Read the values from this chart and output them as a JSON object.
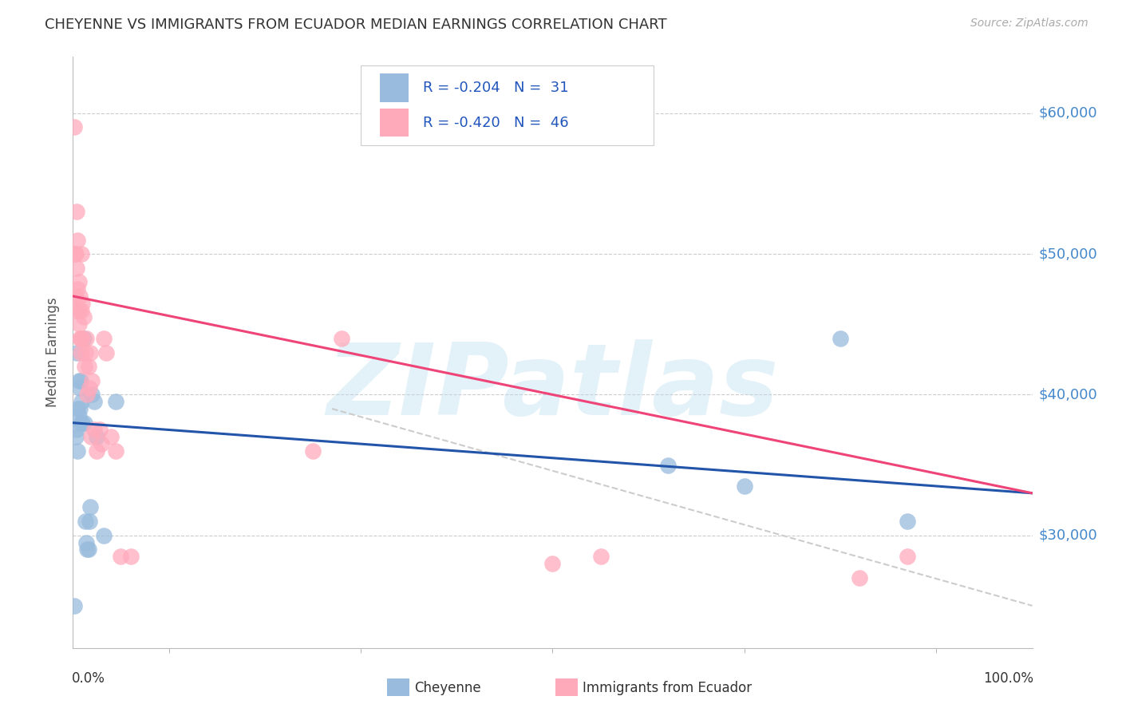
{
  "title": "CHEYENNE VS IMMIGRANTS FROM ECUADOR MEDIAN EARNINGS CORRELATION CHART",
  "source": "Source: ZipAtlas.com",
  "ylabel": "Median Earnings",
  "yticks": [
    30000,
    40000,
    50000,
    60000
  ],
  "ytick_labels": [
    "$30,000",
    "$40,000",
    "$50,000",
    "$60,000"
  ],
  "ylim": [
    22000,
    64000
  ],
  "xlim": [
    0.0,
    1.0
  ],
  "watermark": "ZIPatlas",
  "cheyenne_color": "#99BBDD",
  "ecuador_color": "#FFAABB",
  "cheyenne_line_color": "#2255AA",
  "ecuador_line_color": "#EE4477",
  "title_color": "#333333",
  "right_tick_color": "#4488CC",
  "legend_text_color": "#2255BB",
  "legend_r1": "R = -0.204   N =  31",
  "legend_r2": "R = -0.420   N =  46",
  "cheyenne_label": "Cheyenne",
  "ecuador_label": "Immigrants from Ecuador",
  "cheyenne_x": [
    0.001,
    0.003,
    0.004,
    0.004,
    0.005,
    0.005,
    0.006,
    0.006,
    0.007,
    0.007,
    0.008,
    0.008,
    0.009,
    0.01,
    0.011,
    0.012,
    0.013,
    0.014,
    0.015,
    0.016,
    0.017,
    0.018,
    0.02,
    0.022,
    0.025,
    0.032,
    0.045,
    0.62,
    0.7,
    0.8,
    0.87
  ],
  "cheyenne_y": [
    25000,
    37000,
    37500,
    43000,
    39000,
    36000,
    38500,
    41000,
    39000,
    40500,
    41000,
    38000,
    39500,
    38000,
    44000,
    38000,
    31000,
    29500,
    29000,
    29000,
    31000,
    32000,
    40000,
    39500,
    37000,
    30000,
    39500,
    35000,
    33500,
    44000,
    31000
  ],
  "ecuador_x": [
    0.001,
    0.002,
    0.002,
    0.003,
    0.003,
    0.004,
    0.004,
    0.005,
    0.005,
    0.006,
    0.006,
    0.006,
    0.007,
    0.007,
    0.008,
    0.008,
    0.009,
    0.009,
    0.01,
    0.01,
    0.011,
    0.012,
    0.013,
    0.014,
    0.015,
    0.016,
    0.017,
    0.018,
    0.019,
    0.02,
    0.022,
    0.025,
    0.028,
    0.03,
    0.032,
    0.035,
    0.04,
    0.045,
    0.05,
    0.06,
    0.25,
    0.28,
    0.5,
    0.55,
    0.82,
    0.87
  ],
  "ecuador_y": [
    59000,
    47000,
    50000,
    46000,
    50000,
    49000,
    53000,
    47500,
    51000,
    45000,
    46000,
    48000,
    44000,
    47000,
    43000,
    44000,
    50000,
    46000,
    44000,
    46500,
    45500,
    42000,
    43000,
    44000,
    40000,
    42000,
    40500,
    43000,
    37000,
    41000,
    37500,
    36000,
    37500,
    36500,
    44000,
    43000,
    37000,
    36000,
    28500,
    28500,
    36000,
    44000,
    28000,
    28500,
    27000,
    28500
  ],
  "diag_line_x": [
    0.27,
    1.0
  ],
  "diag_line_y": [
    39000,
    25000
  ]
}
